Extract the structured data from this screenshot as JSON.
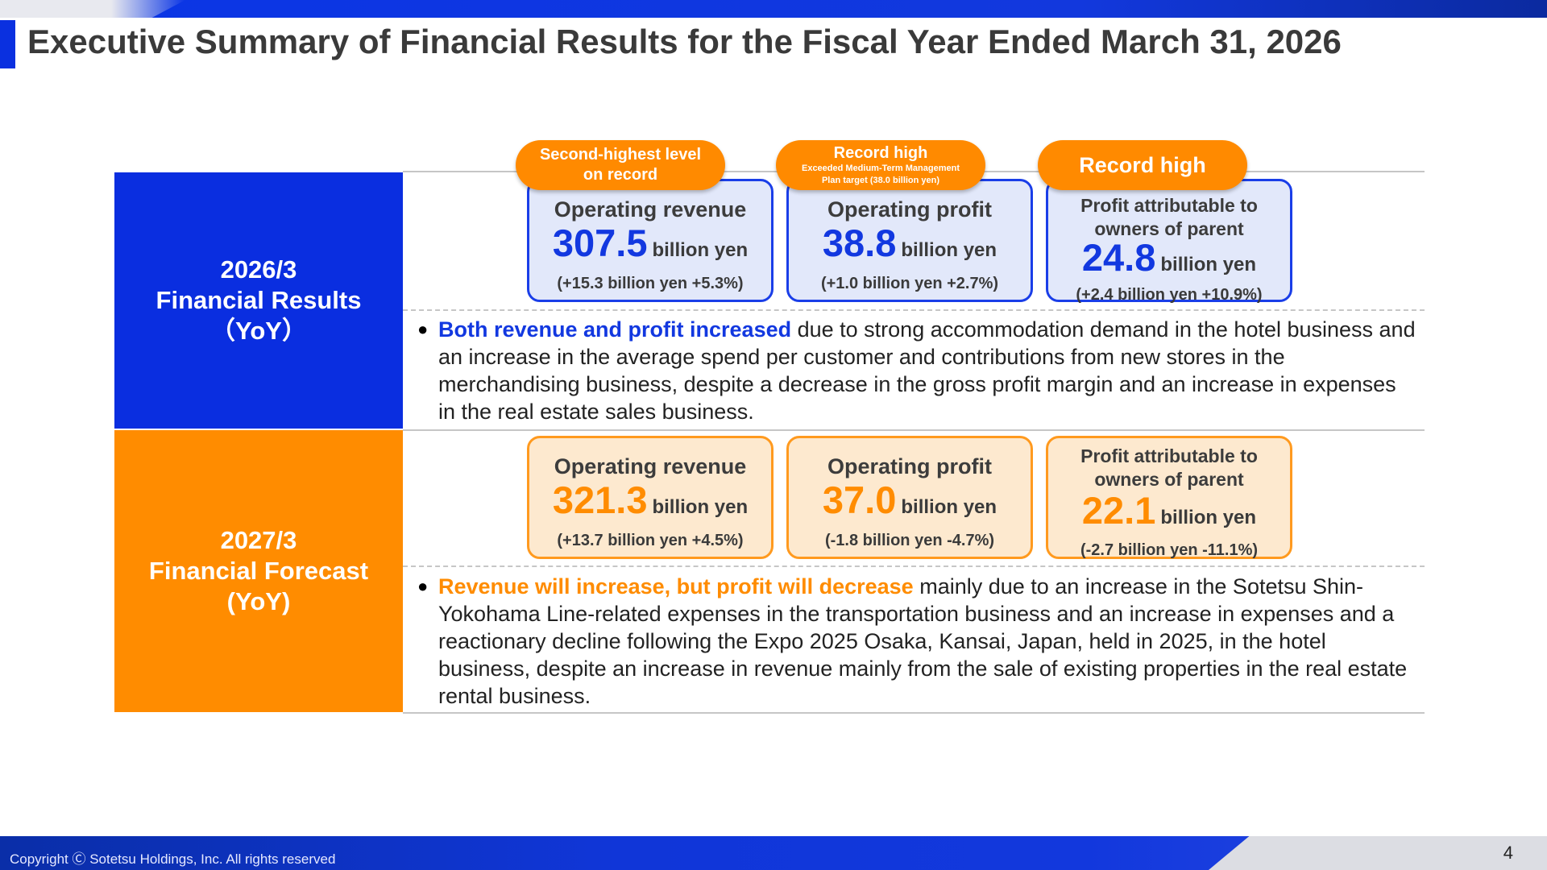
{
  "title": "Executive Summary of Financial Results for the Fiscal Year Ended March 31, 2026",
  "results": {
    "label_line1": "2026/3",
    "label_line2": "Financial Results",
    "label_line3": "（YoY）",
    "badges": [
      {
        "line1": "Second-highest level",
        "line2": "on record"
      },
      {
        "line1": "Record high",
        "line2": "Exceeded Medium-Term Management",
        "line3": "Plan target (38.0 billion yen)"
      },
      {
        "line1": "Record high"
      }
    ],
    "cards": [
      {
        "title": "Operating revenue",
        "value": "307.5",
        "unit": "billion yen",
        "delta": "(+15.3 billion yen +5.3%)"
      },
      {
        "title": "Operating profit",
        "value": "38.8",
        "unit": "billion yen",
        "delta": "(+1.0 billion yen +2.7%)"
      },
      {
        "title_line1": "Profit attributable to",
        "title_line2": "owners of parent",
        "value": "24.8",
        "unit": "billion yen",
        "delta": "(+2.4 billion yen +10.9%)"
      }
    ],
    "bullet_highlight": "Both revenue and profit increased",
    "bullet_text": " due to strong accommodation demand in the hotel business and an increase in the average spend per customer and contributions from new stores in the merchandising business, despite a decrease in the gross profit margin and an increase in expenses in the real estate sales business."
  },
  "forecast": {
    "label_line1": "2027/3",
    "label_line2": "Financial Forecast",
    "label_line3": "(YoY)",
    "cards": [
      {
        "title": "Operating revenue",
        "value": "321.3",
        "unit": "billion yen",
        "delta": "(+13.7 billion yen +4.5%)"
      },
      {
        "title": "Operating profit",
        "value": "37.0",
        "unit": "billion yen",
        "delta": "(-1.8 billion yen -4.7%)"
      },
      {
        "title_line1": "Profit attributable to",
        "title_line2": "owners of parent",
        "value": "22.1",
        "unit": "billion yen",
        "delta": "(-2.7 billion yen -11.1%)"
      }
    ],
    "bullet_highlight": "Revenue will increase, but profit will decrease",
    "bullet_text": " mainly due to an increase in the Sotetsu Shin-Yokohama Line-related expenses in the transportation business and an increase in expenses and a reactionary decline following the Expo 2025 Osaka, Kansai, Japan, held in 2025, in the hotel business, despite an increase in revenue mainly from the sale of existing properties in the real estate rental business."
  },
  "footer": {
    "copyright": "Copyright Ⓒ Sotetsu Holdings, Inc. All rights reserved",
    "page_number": "4"
  },
  "colors": {
    "accent_blue": "#0a2ee0",
    "accent_orange": "#ff8c00"
  }
}
